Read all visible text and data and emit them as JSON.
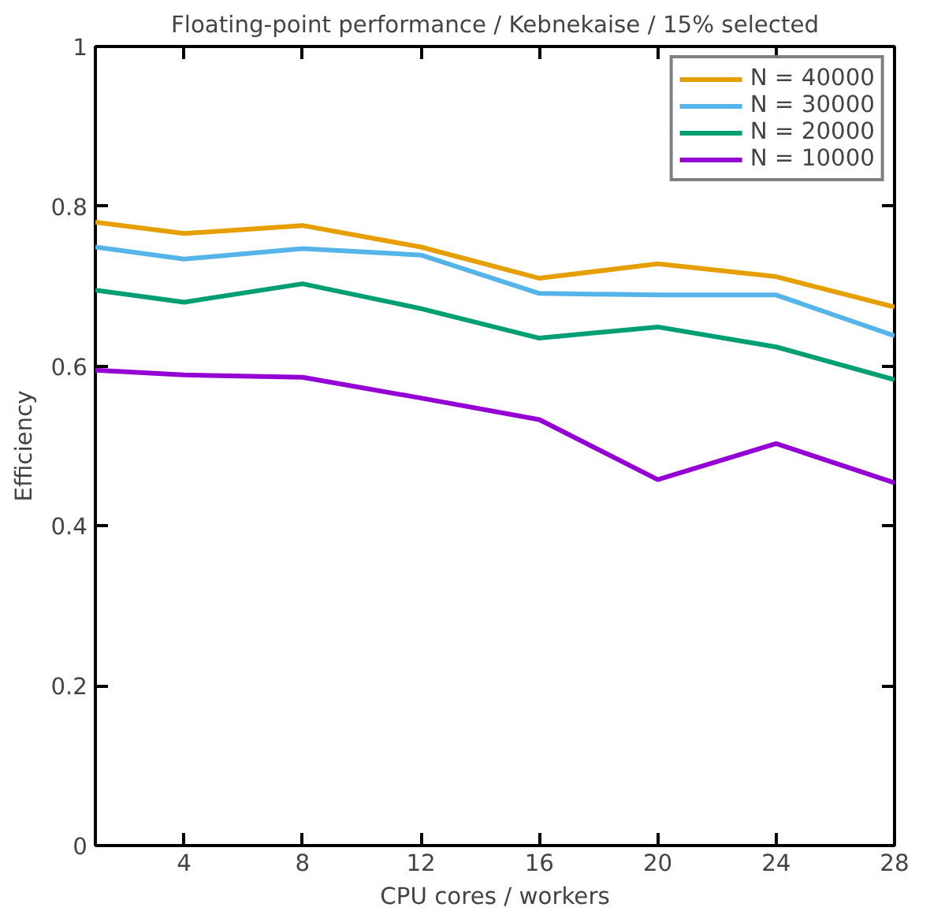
{
  "chart_data": {
    "type": "line",
    "title": "Floating-point performance / Kebnekaise / 15% selected",
    "xlabel": "CPU cores / workers",
    "ylabel": "Efficiency",
    "x": [
      1,
      4,
      8,
      12,
      16,
      20,
      24,
      28
    ],
    "series": [
      {
        "name": "N = 40000",
        "color": "#e69f00",
        "values": [
          0.78,
          0.766,
          0.776,
          0.749,
          0.71,
          0.728,
          0.712,
          0.674
        ]
      },
      {
        "name": "N = 30000",
        "color": "#56b4e9",
        "values": [
          0.749,
          0.734,
          0.747,
          0.739,
          0.691,
          0.689,
          0.689,
          0.638
        ]
      },
      {
        "name": "N = 20000",
        "color": "#009e73",
        "values": [
          0.695,
          0.68,
          0.703,
          0.672,
          0.635,
          0.649,
          0.624,
          0.583
        ]
      },
      {
        "name": "N = 10000",
        "color": "#9400d3",
        "values": [
          0.595,
          0.589,
          0.586,
          0.56,
          0.533,
          0.458,
          0.503,
          0.454
        ]
      }
    ],
    "xlim": [
      1,
      28
    ],
    "ylim": [
      0,
      1
    ],
    "xticks": [
      4,
      8,
      12,
      16,
      20,
      24,
      28
    ],
    "yticks": [
      0,
      0.2,
      0.4,
      0.6,
      0.8,
      1
    ],
    "legend": "top right",
    "grid": false,
    "line_style": "solid"
  }
}
